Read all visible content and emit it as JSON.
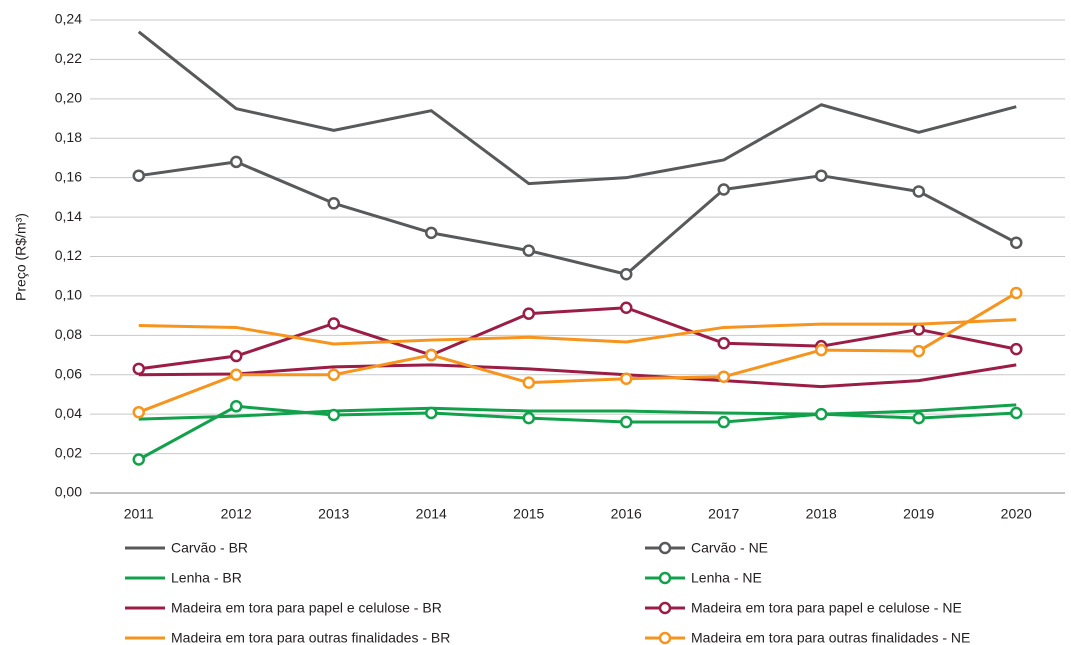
{
  "chart_data": {
    "type": "line",
    "y_label": "Preço (R$/m³)",
    "categories": [
      "2011",
      "2012",
      "2013",
      "2014",
      "2015",
      "2016",
      "2017",
      "2018",
      "2019",
      "2020"
    ],
    "ylim": [
      0,
      0.24
    ],
    "yticks": [
      {
        "value": 0,
        "label": "0,00"
      },
      {
        "value": 0.02,
        "label": "0,02"
      },
      {
        "value": 0.04,
        "label": "0,04"
      },
      {
        "value": 0.06,
        "label": "0,06"
      },
      {
        "value": 0.08,
        "label": "0,08"
      },
      {
        "value": 0.1,
        "label": "0,10"
      },
      {
        "value": 0.12,
        "label": "0,12"
      },
      {
        "value": 0.14,
        "label": "0,14"
      },
      {
        "value": 0.16,
        "label": "0,16"
      },
      {
        "value": 0.18,
        "label": "0,18"
      },
      {
        "value": 0.2,
        "label": "0,20"
      },
      {
        "value": 0.22,
        "label": "0,22"
      },
      {
        "value": 0.24,
        "label": "0,24"
      }
    ],
    "grid": true,
    "series": [
      {
        "name": "Carvão - BR",
        "color": "#58595b",
        "marker": "none",
        "values": [
          0.234,
          0.195,
          0.184,
          0.194,
          0.157,
          0.16,
          0.169,
          0.197,
          0.183,
          0.196
        ]
      },
      {
        "name": "Carvão - NE",
        "color": "#58595b",
        "marker": "circle",
        "values": [
          0.161,
          0.168,
          0.147,
          0.132,
          0.123,
          0.111,
          0.154,
          0.161,
          0.153,
          0.127
        ]
      },
      {
        "name": "Lenha - BR",
        "color": "#12a14b",
        "marker": "none",
        "values": [
          0.0375,
          0.039,
          0.0416,
          0.043,
          0.0416,
          0.0416,
          0.0406,
          0.04,
          0.0416,
          0.0447
        ]
      },
      {
        "name": "Lenha - NE",
        "color": "#12a14b",
        "marker": "circle",
        "values": [
          0.017,
          0.044,
          0.0396,
          0.0406,
          0.038,
          0.036,
          0.036,
          0.04,
          0.038,
          0.0406
        ]
      },
      {
        "name": "Madeira em tora para papel e celulose - BR",
        "color": "#9b1d46",
        "marker": "none",
        "values": [
          0.06,
          0.0604,
          0.064,
          0.065,
          0.063,
          0.06,
          0.057,
          0.054,
          0.057,
          0.065
        ]
      },
      {
        "name": "Madeira em tora para papel e celulose - NE",
        "color": "#9b1d46",
        "marker": "circle",
        "values": [
          0.063,
          0.0695,
          0.086,
          0.07,
          0.091,
          0.094,
          0.076,
          0.0745,
          0.083,
          0.073
        ]
      },
      {
        "name": "Madeira em tora para outras finalidades - BR",
        "color": "#f7941d",
        "marker": "none",
        "values": [
          0.085,
          0.084,
          0.0756,
          0.0776,
          0.079,
          0.0766,
          0.084,
          0.0857,
          0.0857,
          0.088
        ]
      },
      {
        "name": "Madeira em tora para outras finalidades - NE",
        "color": "#f7941d",
        "marker": "circle",
        "values": [
          0.041,
          0.06,
          0.06,
          0.07,
          0.056,
          0.058,
          0.059,
          0.0725,
          0.072,
          0.1015
        ]
      }
    ]
  }
}
